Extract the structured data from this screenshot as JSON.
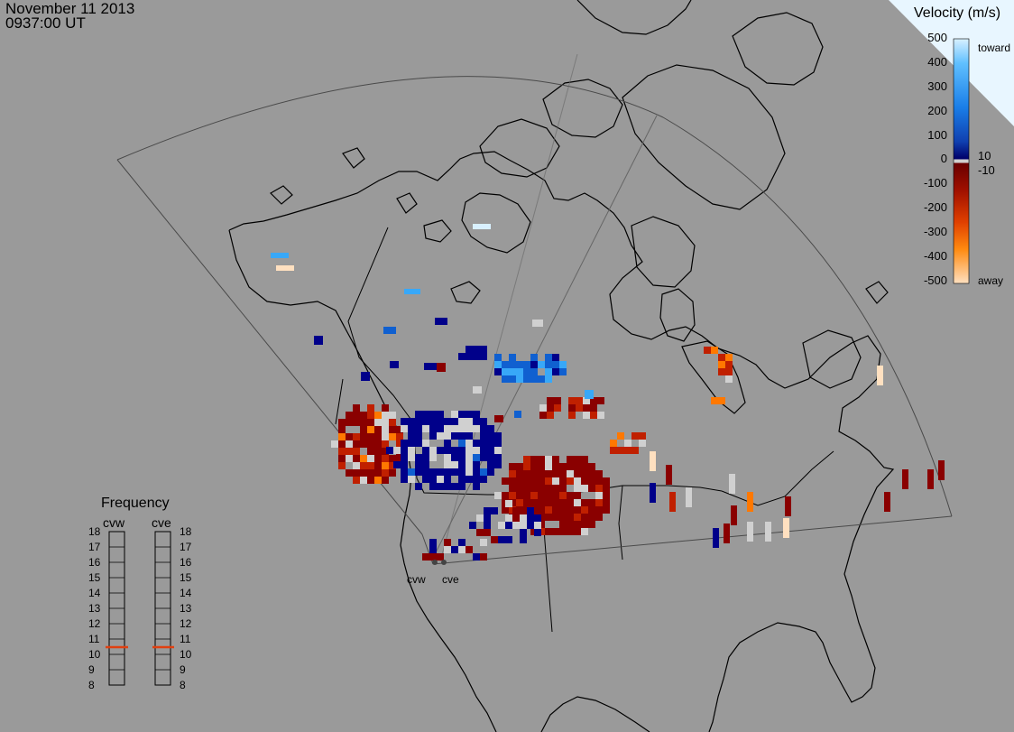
{
  "header": {
    "date": "November 11 2013",
    "time": "0937:00 UT"
  },
  "velocity_legend": {
    "title": "Velocity (m/s)",
    "positive_ticks": [
      "500",
      "400",
      "300",
      "200",
      "100"
    ],
    "zero_tick": "0",
    "negative_ticks": [
      "-100",
      "-200",
      "-300",
      "-400",
      "-500"
    ],
    "small_pos": "10",
    "small_neg": "-10",
    "toward_label": "toward",
    "away_label": "away",
    "colors": {
      "toward_max": "#d8f0ff",
      "toward_high": "#38a8f8",
      "toward_mid": "#1060d0",
      "toward_low": "#00008a",
      "ground": "#d0d0d0",
      "away_low": "#8a0000",
      "away_mid": "#c02000",
      "away_high": "#ff7800",
      "away_max": "#ffe0c0"
    }
  },
  "radar_sites": [
    {
      "code": "cvw"
    },
    {
      "code": "cve"
    }
  ],
  "frequency_panel": {
    "title": "Frequency",
    "columns": [
      {
        "label": "cvw",
        "value_mhz": 10.6
      },
      {
        "label": "cve",
        "value_mhz": 10.6
      }
    ],
    "ticks": [
      "18",
      "17",
      "16",
      "15",
      "14",
      "13",
      "12",
      "11",
      "10",
      "9",
      "8"
    ],
    "marker_color": "#e04010"
  }
}
